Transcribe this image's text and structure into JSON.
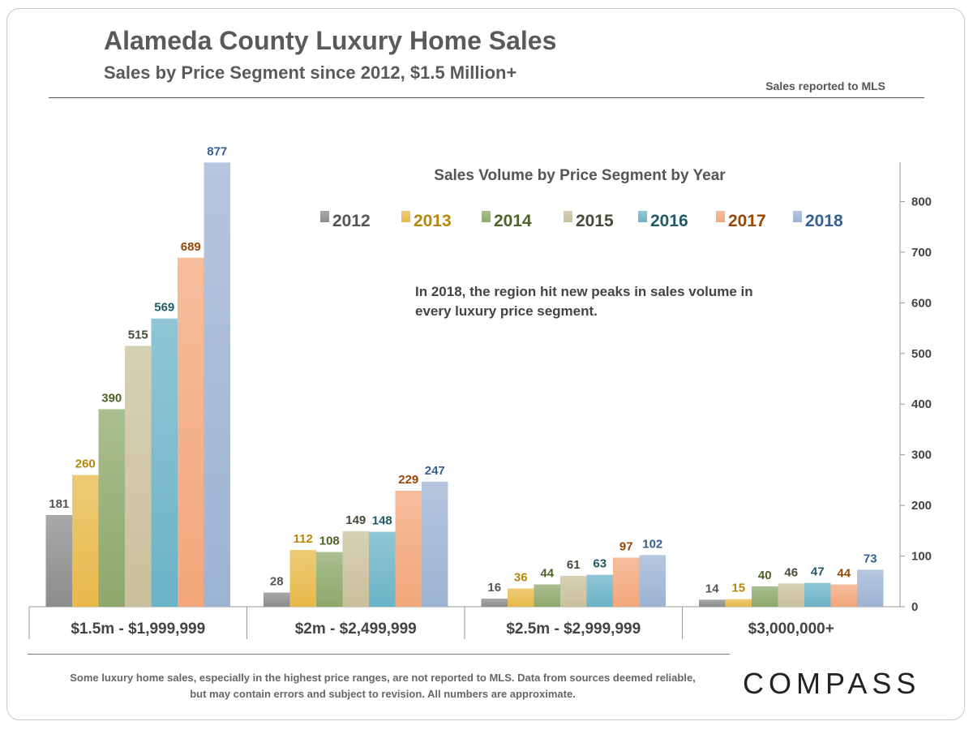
{
  "header": {
    "title": "Alameda County Luxury Home Sales",
    "subtitle": "Sales by Price Segment since 2012, $1.5 Million+",
    "source_note": "Sales reported to MLS"
  },
  "annotation": "In 2018, the region hit new peaks in sales volume in every luxury price segment.",
  "footnote": "Some luxury home sales, especially in the highest price ranges, are not reported to MLS. Data from sources deemed reliable, but may contain errors and subject to revision.  All numbers are approximate.",
  "logo_text": "COMPASS",
  "chart_data": {
    "type": "bar",
    "title": "Sales Volume by Price Segment by Year",
    "categories": [
      "$1.5m - $1,999,999",
      "$2m - $2,499,999",
      "$2.5m - $2,999,999",
      "$3,000,000+"
    ],
    "series": [
      {
        "name": "2012",
        "values": [
          181,
          28,
          16,
          14
        ],
        "color": "#8c8c8c",
        "label_color": "#555555"
      },
      {
        "name": "2013",
        "values": [
          260,
          112,
          36,
          15
        ],
        "color": "#e8b94a",
        "label_color": "#b8860b"
      },
      {
        "name": "2014",
        "values": [
          390,
          108,
          44,
          40
        ],
        "color": "#8ea86a",
        "label_color": "#4f6228"
      },
      {
        "name": "2015",
        "values": [
          515,
          149,
          61,
          46
        ],
        "color": "#c9c09c",
        "label_color": "#4a4a3a"
      },
      {
        "name": "2016",
        "values": [
          569,
          148,
          63,
          47
        ],
        "color": "#6bb3c7",
        "label_color": "#215968"
      },
      {
        "name": "2017",
        "values": [
          689,
          229,
          97,
          44
        ],
        "color": "#f3a77a",
        "label_color": "#974806"
      },
      {
        "name": "2018",
        "values": [
          877,
          247,
          102,
          73
        ],
        "color": "#9db3d3",
        "label_color": "#366092"
      }
    ],
    "y_axis": {
      "min": 0,
      "max": 900,
      "ticks": [
        0,
        100,
        200,
        300,
        400,
        500,
        600,
        700,
        800
      ],
      "position": "right"
    },
    "grid": false,
    "legend": "top"
  }
}
